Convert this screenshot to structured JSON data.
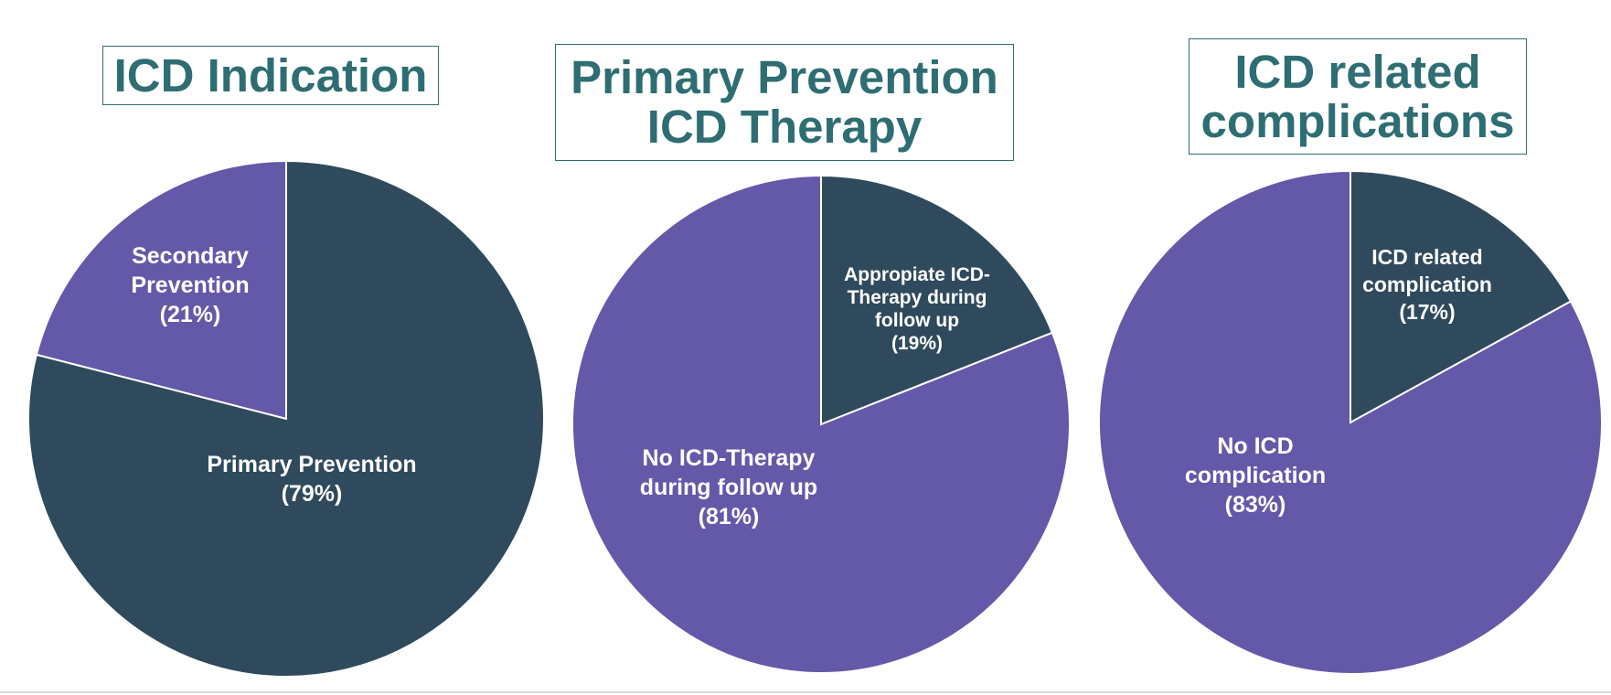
{
  "colors": {
    "primary_slice": "#2f4a5c",
    "secondary_slice": "#6459a8",
    "title_text": "#2e6e73",
    "separator": "#ffffff"
  },
  "chart_data": [
    {
      "type": "pie",
      "title": "ICD Indication",
      "title_lines": [
        "ICD Indication"
      ],
      "slices": [
        {
          "label_lines": [
            "Secondary",
            "Prevention",
            "(21%)"
          ],
          "value": 21,
          "color": "#6459a8"
        },
        {
          "label_lines": [
            "Primary Prevention",
            "(79%)"
          ],
          "value": 79,
          "color": "#2f4a5c"
        }
      ]
    },
    {
      "type": "pie",
      "title": "Primary Prevention ICD Therapy",
      "title_lines": [
        "Primary Prevention",
        "ICD Therapy"
      ],
      "slices": [
        {
          "label_lines": [
            "Appropiate ICD-",
            "Therapy during",
            "follow up",
            "(19%)"
          ],
          "value": 19,
          "color": "#2f4a5c"
        },
        {
          "label_lines": [
            "No ICD-Therapy",
            "during follow up",
            "(81%)"
          ],
          "value": 81,
          "color": "#6459a8"
        }
      ]
    },
    {
      "type": "pie",
      "title": "ICD related complications",
      "title_lines": [
        "ICD related",
        "complications"
      ],
      "slices": [
        {
          "label_lines": [
            "ICD related",
            "complication",
            "(17%)"
          ],
          "value": 17,
          "color": "#2f4a5c"
        },
        {
          "label_lines": [
            "No ICD",
            "complication",
            "(83%)"
          ],
          "value": 83,
          "color": "#6459a8"
        }
      ]
    }
  ]
}
